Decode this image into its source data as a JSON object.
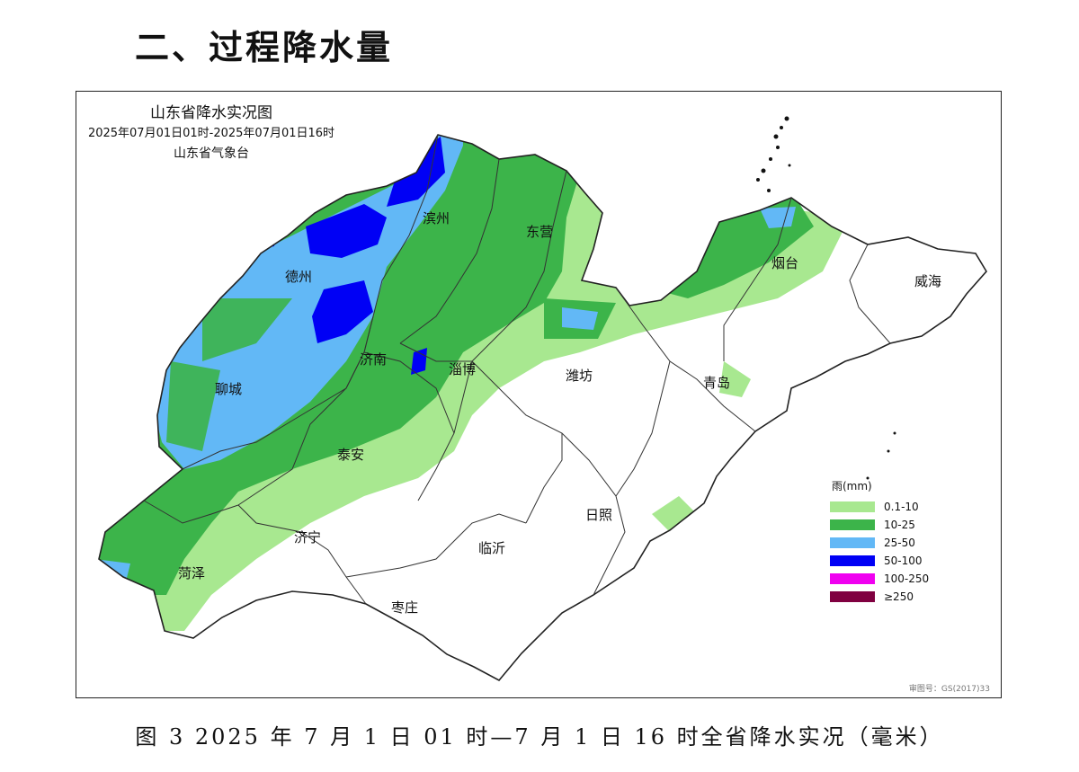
{
  "section_title": "二、过程降水量",
  "map": {
    "title": "山东省降水实况图",
    "period": "2025年07月01日01时-2025年07月01日16时",
    "agency": "山东省气象台",
    "cities": [
      {
        "id": "binzhou",
        "name": "滨州"
      },
      {
        "id": "dongying",
        "name": "东营"
      },
      {
        "id": "dezhou",
        "name": "德州"
      },
      {
        "id": "yantai",
        "name": "烟台"
      },
      {
        "id": "weihai",
        "name": "威海"
      },
      {
        "id": "jinan",
        "name": "济南"
      },
      {
        "id": "zibo",
        "name": "淄博"
      },
      {
        "id": "liaocheng",
        "name": "聊城"
      },
      {
        "id": "weifang",
        "name": "潍坊"
      },
      {
        "id": "qingdao",
        "name": "青岛"
      },
      {
        "id": "taian",
        "name": "泰安"
      },
      {
        "id": "jining",
        "name": "济宁"
      },
      {
        "id": "rizhao",
        "name": "日照"
      },
      {
        "id": "linyi",
        "name": "临沂"
      },
      {
        "id": "heze",
        "name": "菏泽"
      },
      {
        "id": "zaozhuang",
        "name": "枣庄"
      }
    ],
    "approval_number": "审图号：GS(2017)33"
  },
  "legend": {
    "title": "雨(mm)",
    "items": [
      {
        "label": "0.1-10",
        "color": "#a8e890"
      },
      {
        "label": "10-25",
        "color": "#3cb44a"
      },
      {
        "label": "25-50",
        "color": "#62b8f6"
      },
      {
        "label": "50-100",
        "color": "#0000f5"
      },
      {
        "label": "100-250",
        "color": "#f000f0"
      },
      {
        "label": "≥250",
        "color": "#800040"
      }
    ]
  },
  "caption": "图 3 2025 年 7 月 1 日 01 时—7 月 1 日 16 时全省降水实况（毫米）"
}
